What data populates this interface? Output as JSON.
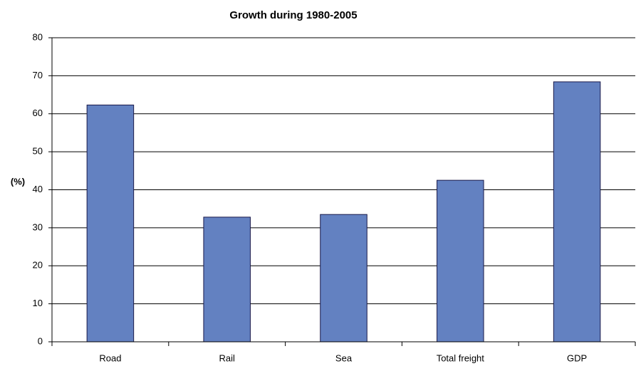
{
  "chart_data": {
    "type": "bar",
    "title": "Growth during 1980-2005",
    "y_label": "(%)",
    "categories": [
      "Road",
      "Rail",
      "Sea",
      "Total freight",
      "GDP"
    ],
    "values": [
      62.3,
      32.8,
      33.5,
      42.5,
      68.4
    ],
    "color": "#6381c1",
    "ylim": [
      0,
      80
    ],
    "yticks": [
      0,
      10,
      20,
      30,
      40,
      50,
      60,
      70,
      80
    ],
    "grid": true
  }
}
